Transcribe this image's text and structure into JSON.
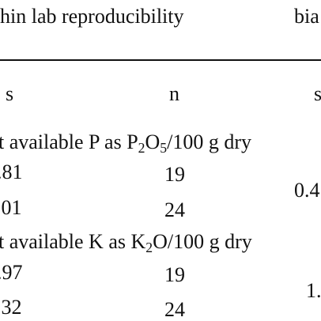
{
  "header": {
    "col_group_left": "hin lab reproducibility",
    "col_group_right": "bia"
  },
  "subheader": {
    "s_left": "s",
    "n": "n",
    "s_right": "s"
  },
  "section1": {
    "label_prefix": "t available P as P",
    "label_sub_a": "2",
    "label_mid": "O",
    "label_sub_b": "5",
    "label_suffix": "/100 g dry",
    "rows": [
      {
        "s": ".81",
        "n": "19"
      },
      {
        "s": ".01",
        "n": "24"
      }
    ],
    "bias_s": "0.4"
  },
  "section2": {
    "label_prefix": "t available K as K",
    "label_sub_a": "2",
    "label_suffix": "O/100 g dry",
    "rows": [
      {
        "s": ".97",
        "n": "19"
      },
      {
        "s": ".32",
        "n": "24"
      }
    ],
    "bias_s": "1."
  }
}
